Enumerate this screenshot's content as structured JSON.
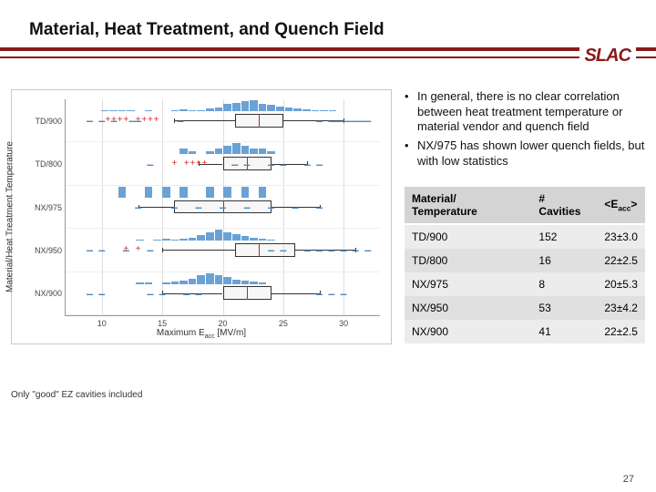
{
  "title": "Material, Heat Treatment, and Quench Field",
  "logo": "SLAC",
  "brand_color": "#8a1a1a",
  "bullets": [
    "In general, there is no clear correlation between heat treatment temperature or material vendor and quench field",
    "NX/975 has shown lower quench fields, but with low statistics"
  ],
  "table": {
    "columns": [
      "Material/ Temperature",
      "# Cavities",
      "<E_acc>"
    ],
    "rows": [
      [
        "TD/900",
        "152",
        "23±3.0"
      ],
      [
        "TD/800",
        "16",
        "22±2.5"
      ],
      [
        "NX/975",
        "8",
        "20±5.3"
      ],
      [
        "NX/950",
        "53",
        "23±4.2"
      ],
      [
        "NX/900",
        "41",
        "22±2.5"
      ]
    ]
  },
  "caption": "Only \"good\" EZ cavities included",
  "page_num": "27",
  "chart": {
    "type": "boxplot-with-histogram",
    "xlabel": "Maximum E_acc [MV/m]",
    "ylabel": "Material/Heat Treatment Temperature",
    "xlim": [
      7,
      33
    ],
    "xticks": [
      10,
      15,
      20,
      25,
      30
    ],
    "categories": [
      "TD/900",
      "TD/800",
      "NX/975",
      "NX/950",
      "NX/900"
    ],
    "series_color": "#6aa2d6",
    "outlier_plus_color": "#cc3030",
    "outlier_minus_color": "#4b88c8",
    "median_color": "#cc2020",
    "grid_color": "#dddddd",
    "border_color": "#c8c8c8",
    "boxes": [
      {
        "cat": "TD/900",
        "q1": 21,
        "med": 23,
        "q3": 25,
        "wlo": 16,
        "whi": 30,
        "plus": [
          10.5,
          11,
          11.5,
          12,
          13,
          13.5,
          14,
          14.5
        ],
        "minus": [
          9,
          10,
          11,
          12.5,
          13,
          16.5,
          28,
          29,
          29.5,
          30,
          30.5,
          31,
          31.5,
          32
        ],
        "hist": [
          0,
          0,
          0,
          0,
          1,
          2,
          2,
          1,
          0,
          1,
          0,
          0,
          2,
          3,
          2,
          1,
          4,
          6,
          12,
          14,
          16,
          18,
          12,
          10,
          8,
          6,
          4,
          3,
          2,
          1,
          1,
          0,
          0,
          0,
          0
        ]
      },
      {
        "cat": "TD/800",
        "q1": 20,
        "med": 22,
        "q3": 24,
        "wlo": 18,
        "whi": 27,
        "plus": [
          16,
          17,
          17.5,
          18,
          18.5
        ],
        "minus": [
          14,
          21,
          22,
          24,
          25,
          27,
          28
        ],
        "hist": [
          0,
          0,
          0,
          0,
          0,
          0,
          0,
          0,
          0,
          0,
          0,
          0,
          0,
          2,
          1,
          0,
          1,
          2,
          3,
          4,
          3,
          2,
          2,
          1,
          0,
          0,
          0,
          0,
          0,
          0,
          0,
          0,
          0,
          0,
          0
        ]
      },
      {
        "cat": "NX/975",
        "q1": 16,
        "med": 20,
        "q3": 24,
        "wlo": 13,
        "whi": 28,
        "plus": [],
        "minus": [
          13,
          16,
          18,
          20,
          22,
          24,
          26,
          28
        ],
        "hist": [
          0,
          0,
          0,
          0,
          0,
          0,
          1,
          0,
          0,
          1,
          0,
          1,
          0,
          1,
          0,
          0,
          1,
          0,
          1,
          0,
          1,
          0,
          1,
          0,
          0,
          0,
          0,
          0,
          0,
          0,
          0,
          0,
          0,
          0,
          0
        ]
      },
      {
        "cat": "NX/950",
        "q1": 21,
        "med": 23,
        "q3": 26,
        "wlo": 15,
        "whi": 31,
        "plus": [
          12,
          13
        ],
        "minus": [
          9,
          10,
          12,
          14,
          24,
          25,
          27,
          28,
          29,
          30,
          31,
          32
        ],
        "hist": [
          0,
          0,
          0,
          0,
          0,
          0,
          0,
          0,
          1,
          0,
          1,
          2,
          1,
          2,
          3,
          5,
          8,
          10,
          8,
          6,
          4,
          3,
          2,
          1,
          0,
          0,
          0,
          0,
          0,
          0,
          0,
          0,
          0,
          0,
          0
        ]
      },
      {
        "cat": "NX/900",
        "q1": 20,
        "med": 22,
        "q3": 24,
        "wlo": 15,
        "whi": 28,
        "plus": [],
        "minus": [
          9,
          10,
          14,
          15,
          17,
          18,
          28,
          29,
          30
        ],
        "hist": [
          0,
          0,
          0,
          0,
          0,
          0,
          0,
          0,
          1,
          1,
          0,
          1,
          2,
          3,
          5,
          8,
          10,
          8,
          6,
          4,
          3,
          2,
          1,
          0,
          0,
          0,
          0,
          0,
          0,
          0,
          0,
          0,
          0,
          0,
          0
        ]
      }
    ]
  }
}
